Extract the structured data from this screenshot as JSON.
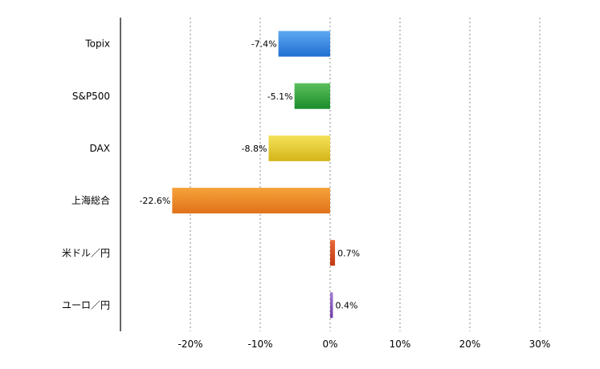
{
  "chart_data": {
    "type": "bar",
    "orientation": "horizontal",
    "categories": [
      "Topix",
      "S&P500",
      "DAX",
      "上海総合",
      "米ドル／円",
      "ユーロ／円"
    ],
    "values": [
      -7.4,
      -5.1,
      -8.8,
      -22.6,
      0.7,
      0.4
    ],
    "data_labels": [
      "-7.4%",
      "-5.1%",
      "-8.8%",
      "-22.6%",
      "0.7%",
      "0.4%"
    ],
    "bar_colors": [
      [
        "#5ea8f2",
        "#1f6fd0"
      ],
      [
        "#5cc05c",
        "#1c8c2c"
      ],
      [
        "#f5e25a",
        "#d4b418"
      ],
      [
        "#f6a33a",
        "#e0721a"
      ],
      [
        "#e86a3a",
        "#c03a14"
      ],
      [
        "#a37bd6",
        "#6f3fa8"
      ]
    ],
    "x_ticks": [
      -20,
      -10,
      0,
      10,
      20,
      30
    ],
    "x_tick_labels": [
      "-20%",
      "-10%",
      "0%",
      "10%",
      "20%",
      "30%"
    ],
    "xlim": [
      -29.6,
      30
    ],
    "grid": true,
    "legend": "none",
    "title": "",
    "xlabel": "",
    "ylabel": ""
  }
}
